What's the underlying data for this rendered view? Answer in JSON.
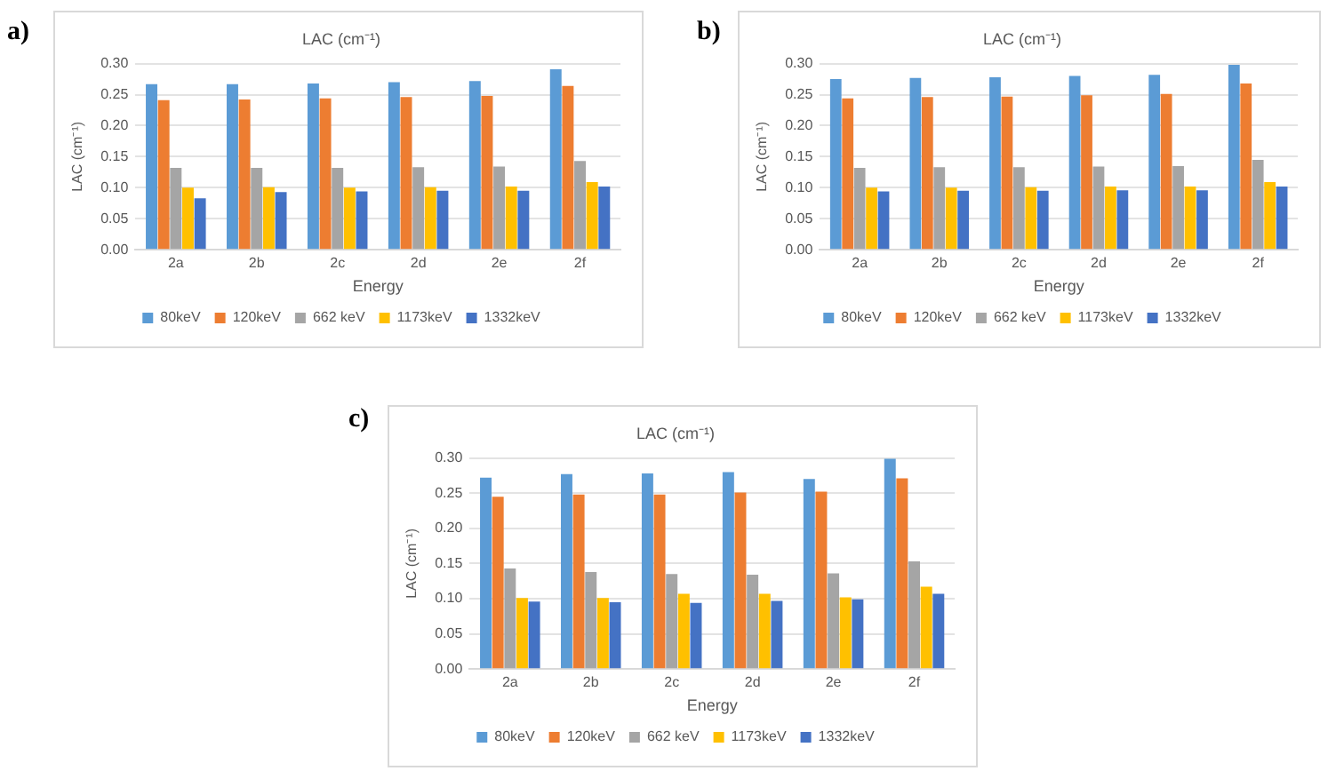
{
  "chart_data": [
    {
      "type": "bar",
      "title": "LAC (cm⁻¹)",
      "xlabel": "Energy",
      "ylabel": "LAC (cm⁻¹)",
      "annotations": [
        "a)"
      ],
      "categories": [
        "2a",
        "2b",
        "2c",
        "2d",
        "2e",
        "2f"
      ],
      "ylim": [
        0,
        0.3
      ],
      "yticks": [
        {
          "value": 0,
          "label": "0.00"
        },
        {
          "value": 0.05,
          "label": "0.05"
        },
        {
          "value": 0.1,
          "label": "0.10"
        },
        {
          "value": 0.15,
          "label": "0.15"
        },
        {
          "value": 0.2,
          "label": "0.20"
        },
        {
          "value": 0.25,
          "label": "0.25"
        },
        {
          "value": 0.3,
          "label": "0.30"
        }
      ],
      "grid": "y",
      "legend": "bottom",
      "series": [
        {
          "name": "80keV",
          "color": "#5b9bd5",
          "values": [
            0.267,
            0.267,
            0.268,
            0.27,
            0.272,
            0.291
          ]
        },
        {
          "name": "120keV",
          "color": "#ed7d31",
          "values": [
            0.241,
            0.242,
            0.244,
            0.246,
            0.248,
            0.264
          ]
        },
        {
          "name": "662 keV",
          "color": "#a5a5a5",
          "values": [
            0.132,
            0.132,
            0.132,
            0.133,
            0.134,
            0.143
          ]
        },
        {
          "name": "1173keV",
          "color": "#ffc000",
          "values": [
            0.1,
            0.101,
            0.1,
            0.101,
            0.102,
            0.109
          ]
        },
        {
          "name": "1332keV",
          "color": "#4472c4",
          "values": [
            0.083,
            0.093,
            0.094,
            0.095,
            0.095,
            0.102
          ]
        }
      ]
    },
    {
      "type": "bar",
      "title": "LAC (cm⁻¹)",
      "xlabel": "Energy",
      "ylabel": "LAC (cm⁻¹)",
      "annotations": [
        "b)"
      ],
      "categories": [
        "2a",
        "2b",
        "2c",
        "2d",
        "2e",
        "2f"
      ],
      "ylim": [
        0,
        0.3
      ],
      "yticks": [
        {
          "value": 0,
          "label": "0.00"
        },
        {
          "value": 0.05,
          "label": "0.05"
        },
        {
          "value": 0.1,
          "label": "0.10"
        },
        {
          "value": 0.15,
          "label": "0.15"
        },
        {
          "value": 0.2,
          "label": "0.20"
        },
        {
          "value": 0.25,
          "label": "0.25"
        },
        {
          "value": 0.3,
          "label": "0.30"
        }
      ],
      "grid": "y",
      "legend": "bottom",
      "series": [
        {
          "name": "80keV",
          "color": "#5b9bd5",
          "values": [
            0.275,
            0.277,
            0.278,
            0.28,
            0.282,
            0.298
          ]
        },
        {
          "name": "120keV",
          "color": "#ed7d31",
          "values": [
            0.244,
            0.246,
            0.247,
            0.249,
            0.251,
            0.268
          ]
        },
        {
          "name": "662 keV",
          "color": "#a5a5a5",
          "values": [
            0.132,
            0.133,
            0.133,
            0.134,
            0.135,
            0.145
          ]
        },
        {
          "name": "1173keV",
          "color": "#ffc000",
          "values": [
            0.1,
            0.1,
            0.101,
            0.102,
            0.102,
            0.109
          ]
        },
        {
          "name": "1332keV",
          "color": "#4472c4",
          "values": [
            0.094,
            0.095,
            0.095,
            0.096,
            0.096,
            0.102
          ]
        }
      ]
    },
    {
      "type": "bar",
      "title": "LAC (cm⁻¹)",
      "xlabel": "Energy",
      "ylabel": "LAC (cm⁻¹)",
      "annotations": [
        "c)"
      ],
      "categories": [
        "2a",
        "2b",
        "2c",
        "2d",
        "2e",
        "2f"
      ],
      "ylim": [
        0,
        0.3
      ],
      "yticks": [
        {
          "value": 0,
          "label": "0.00"
        },
        {
          "value": 0.05,
          "label": "0.05"
        },
        {
          "value": 0.1,
          "label": "0.10"
        },
        {
          "value": 0.15,
          "label": "0.15"
        },
        {
          "value": 0.2,
          "label": "0.20"
        },
        {
          "value": 0.25,
          "label": "0.25"
        },
        {
          "value": 0.3,
          "label": "0.30"
        }
      ],
      "grid": "y",
      "legend": "bottom",
      "series": [
        {
          "name": "80keV",
          "color": "#5b9bd5",
          "values": [
            0.272,
            0.277,
            0.278,
            0.28,
            0.27,
            0.299
          ]
        },
        {
          "name": "120keV",
          "color": "#ed7d31",
          "values": [
            0.245,
            0.248,
            0.248,
            0.251,
            0.252,
            0.271
          ]
        },
        {
          "name": "662 keV",
          "color": "#a5a5a5",
          "values": [
            0.143,
            0.138,
            0.135,
            0.134,
            0.136,
            0.153
          ]
        },
        {
          "name": "1173keV",
          "color": "#ffc000",
          "values": [
            0.101,
            0.101,
            0.107,
            0.107,
            0.102,
            0.117
          ]
        },
        {
          "name": "1332keV",
          "color": "#4472c4",
          "values": [
            0.096,
            0.095,
            0.094,
            0.097,
            0.099,
            0.107
          ]
        }
      ]
    }
  ]
}
